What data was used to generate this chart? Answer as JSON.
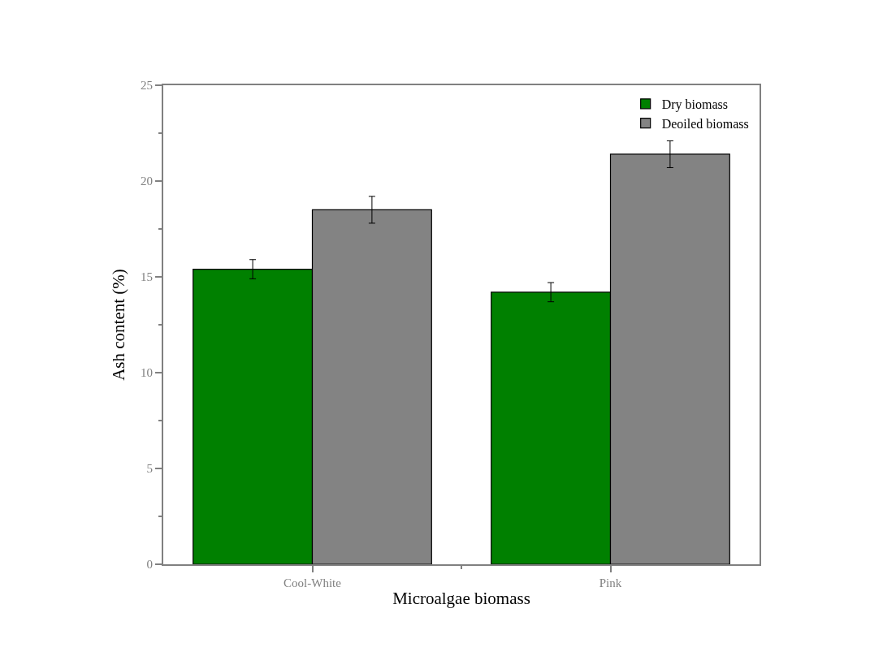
{
  "chart_data": {
    "type": "bar",
    "xlabel": "Microalgae biomass",
    "ylabel": "Ash content (%)",
    "categories": [
      "Cool-White",
      "Pink"
    ],
    "series": [
      {
        "name": "Dry biomass",
        "color": "#008000",
        "values": [
          15.4,
          14.2
        ],
        "errors": [
          0.5,
          0.5
        ]
      },
      {
        "name": "Deoiled biomass",
        "color": "#838383",
        "values": [
          18.5,
          21.4
        ],
        "errors": [
          0.7,
          0.7
        ]
      }
    ],
    "ylim": [
      0,
      25
    ],
    "yticks": [
      0,
      5,
      10,
      15,
      20,
      25
    ],
    "legend": "top right"
  }
}
